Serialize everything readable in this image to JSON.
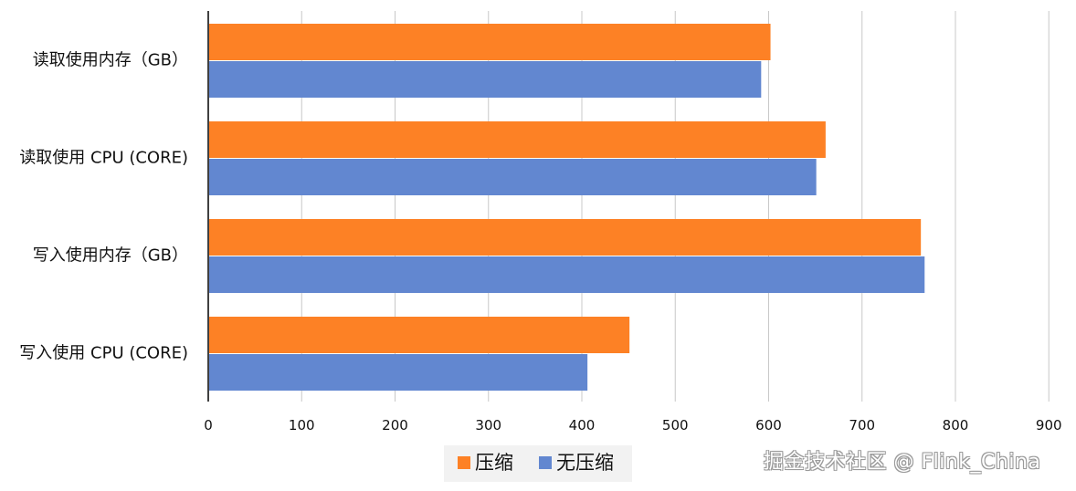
{
  "chart_data": {
    "type": "bar",
    "orientation": "horizontal",
    "categories": [
      "读取使用内存（GB）",
      "读取使用 CPU (CORE)",
      "写入使用内存（GB）",
      "写入使用 CPU (CORE)"
    ],
    "series": [
      {
        "name": "压缩",
        "color": "#fd8125",
        "values": [
          602,
          661,
          763,
          451
        ]
      },
      {
        "name": "无压缩",
        "color": "#6287d0",
        "values": [
          592,
          651,
          767,
          406
        ]
      }
    ],
    "x_ticks": [
      "0",
      "100",
      "200",
      "300",
      "400",
      "500",
      "600",
      "700",
      "800",
      "900"
    ],
    "xlim": [
      0,
      900
    ],
    "grid": true,
    "legend_position": "bottom",
    "title": "",
    "xlabel": "",
    "ylabel": ""
  },
  "watermark": "掘金技术社区 @ Flink_China",
  "colors": {
    "grid": "#c8c8c8",
    "axis": "#404040",
    "text": "#111111",
    "legend_bg": "#f2f2f2"
  }
}
